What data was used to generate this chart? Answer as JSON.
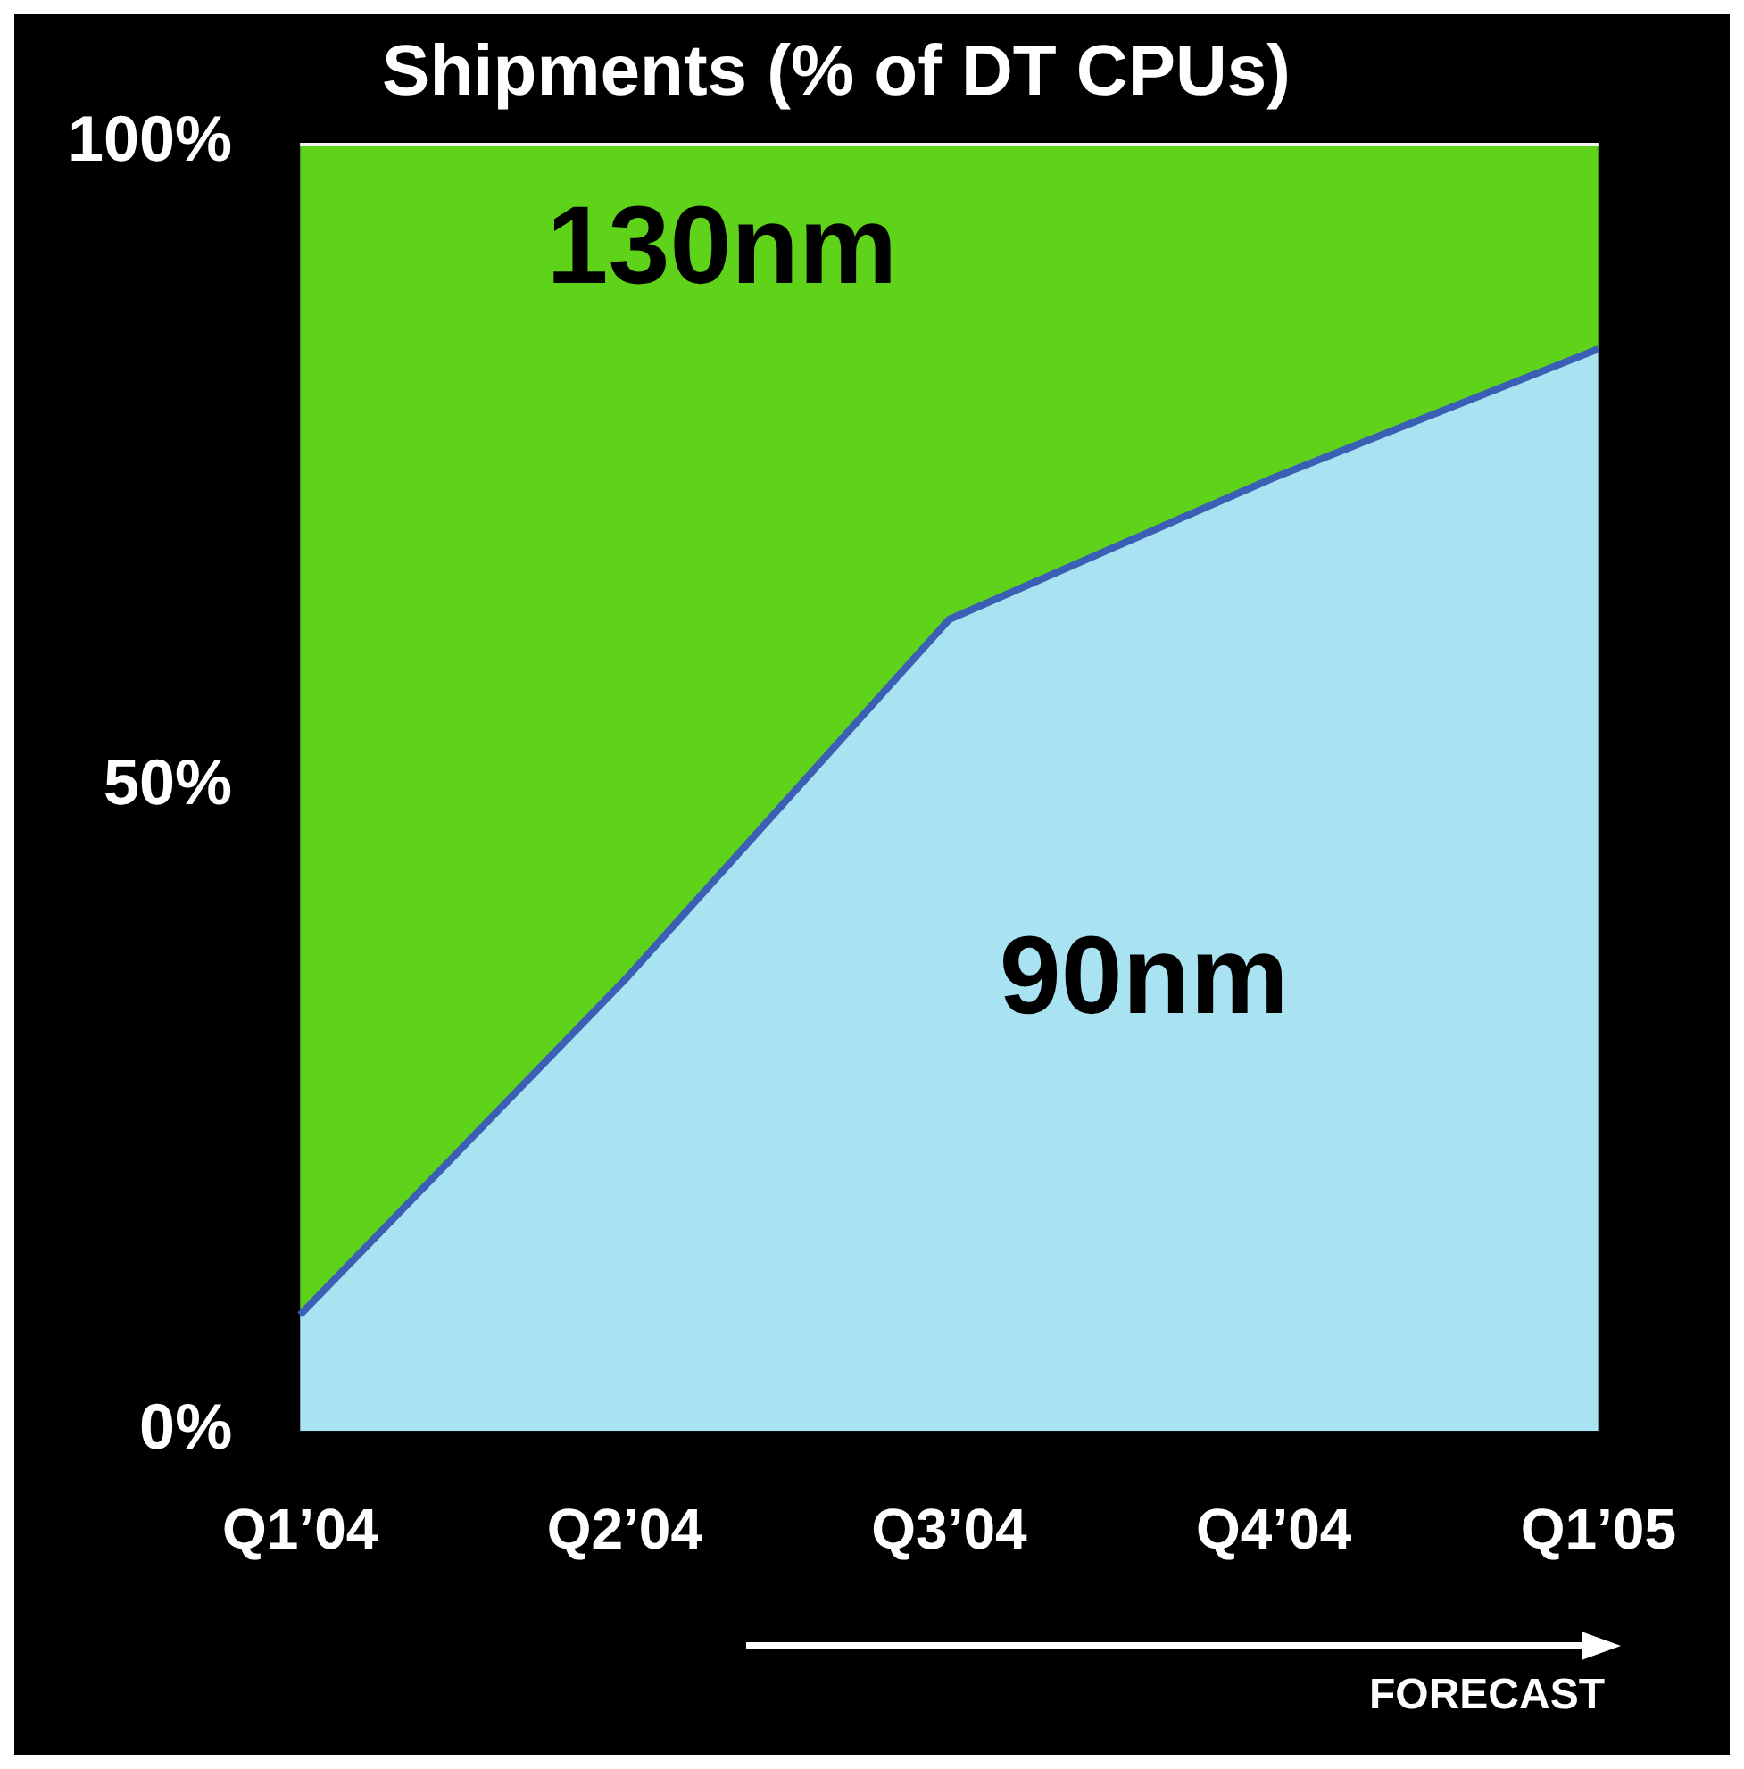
{
  "chart_data": {
    "type": "area",
    "title": "Shipments (% of DT CPUs)",
    "categories": [
      "Q1’04",
      "Q2’04",
      "Q3’04",
      "Q4’04",
      "Q1’05"
    ],
    "stacked": true,
    "series": [
      {
        "name": "90nm",
        "color": "#a9e3f2",
        "values": [
          9,
          35,
          63,
          74,
          84
        ]
      },
      {
        "name": "130nm",
        "color": "#5fd31a",
        "values": [
          91,
          65,
          37,
          26,
          16
        ]
      }
    ],
    "ylim": [
      0,
      100
    ],
    "yticks": [
      {
        "value": 0,
        "label": "0%"
      },
      {
        "value": 50,
        "label": "50%"
      },
      {
        "value": 100,
        "label": "100%"
      }
    ],
    "grid": false,
    "legend": false,
    "annotations": [
      "FORECAST"
    ]
  }
}
